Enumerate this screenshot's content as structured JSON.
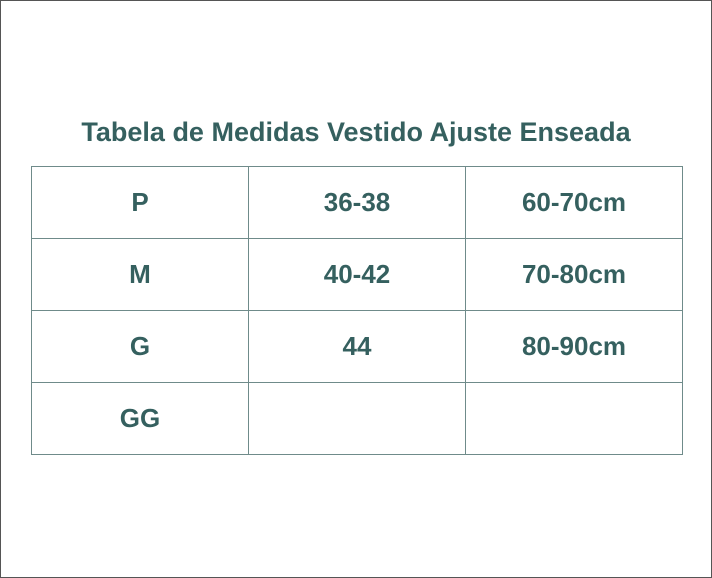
{
  "title": "Tabela de Medidas Vestido Ajuste Enseada",
  "table": {
    "rows": [
      [
        "P",
        "36-38",
        "60-70cm"
      ],
      [
        "M",
        "40-42",
        "70-80cm"
      ],
      [
        "G",
        "44",
        "80-90cm"
      ],
      [
        "GG",
        "",
        ""
      ]
    ]
  },
  "colors": {
    "text": "#35605f",
    "border": "#6f8b8a"
  }
}
